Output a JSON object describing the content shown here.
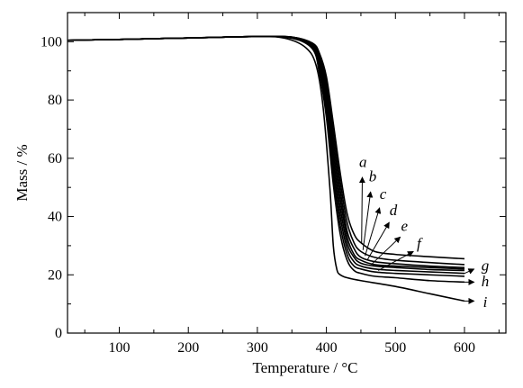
{
  "chart_data": {
    "type": "line",
    "xlabel": "Temperature / °C",
    "ylabel": "Mass / %",
    "xlim": [
      25,
      660
    ],
    "ylim": [
      0,
      110
    ],
    "x_ticks": [
      100,
      200,
      300,
      400,
      500,
      600
    ],
    "x_tick_labels": [
      "100",
      "200",
      "300",
      "400",
      "500",
      "600"
    ],
    "y_ticks": [
      0,
      20,
      40,
      60,
      80,
      100
    ],
    "y_tick_labels": [
      "0",
      "20",
      "40",
      "60",
      "80",
      "100"
    ],
    "grid": false,
    "legend": "none",
    "series": [
      {
        "name": "a",
        "x": [
          25,
          100,
          200,
          300,
          350,
          380,
          390,
          400,
          410,
          420,
          430,
          440,
          450,
          470,
          500,
          550,
          600
        ],
        "y": [
          100.5,
          100.8,
          101.3,
          101.8,
          101.6,
          99.5,
          96,
          88,
          72,
          55,
          41,
          34,
          31,
          28,
          27,
          26.2,
          25.5
        ]
      },
      {
        "name": "b",
        "x": [
          25,
          100,
          200,
          300,
          350,
          380,
          390,
          400,
          410,
          420,
          430,
          440,
          450,
          470,
          500,
          550,
          600
        ],
        "y": [
          100.5,
          100.8,
          101.3,
          101.8,
          101.6,
          99.2,
          95,
          86,
          69,
          52,
          38,
          31,
          28,
          26,
          25,
          24.2,
          23.5
        ]
      },
      {
        "name": "c",
        "x": [
          25,
          100,
          200,
          300,
          350,
          380,
          390,
          400,
          410,
          420,
          430,
          440,
          450,
          470,
          500,
          550,
          600
        ],
        "y": [
          100.5,
          100.8,
          101.3,
          101.8,
          101.6,
          99,
          94,
          84,
          66,
          49,
          35,
          29,
          26,
          24.5,
          23.8,
          23,
          22.5
        ]
      },
      {
        "name": "d",
        "x": [
          25,
          100,
          200,
          300,
          350,
          380,
          390,
          400,
          410,
          420,
          430,
          440,
          450,
          470,
          500,
          550,
          600
        ],
        "y": [
          100.5,
          100.8,
          101.3,
          101.8,
          101.5,
          98.8,
          93,
          82,
          63,
          46,
          33,
          27,
          25,
          23.5,
          23,
          22.5,
          22
        ]
      },
      {
        "name": "e",
        "x": [
          25,
          100,
          200,
          300,
          350,
          380,
          390,
          400,
          410,
          420,
          430,
          440,
          450,
          470,
          500,
          550,
          600
        ],
        "y": [
          100.5,
          100.8,
          101.3,
          101.8,
          101.5,
          98.5,
          92,
          80,
          60,
          43,
          31,
          26,
          24,
          23,
          22.5,
          21.8,
          21.5
        ]
      },
      {
        "name": "f",
        "x": [
          25,
          100,
          200,
          300,
          350,
          380,
          390,
          400,
          410,
          420,
          430,
          440,
          450,
          470,
          500,
          550,
          600
        ],
        "y": [
          100.5,
          100.8,
          101.3,
          101.8,
          101.4,
          98.2,
          91,
          78,
          57,
          40,
          29,
          24.5,
          23,
          22,
          21.5,
          21,
          20.5
        ]
      },
      {
        "name": "g",
        "x": [
          25,
          100,
          200,
          300,
          350,
          380,
          390,
          400,
          410,
          420,
          430,
          440,
          450,
          470,
          500,
          550,
          600
        ],
        "y": [
          100.5,
          100.8,
          101.3,
          101.8,
          101.3,
          98,
          90,
          76,
          54,
          37,
          27,
          23,
          22,
          21,
          20.5,
          20,
          19.5
        ]
      },
      {
        "name": "h",
        "x": [
          25,
          100,
          200,
          300,
          350,
          380,
          390,
          400,
          410,
          420,
          430,
          440,
          450,
          470,
          500,
          550,
          600
        ],
        "y": [
          100.5,
          100.8,
          101.3,
          101.8,
          101.2,
          97.5,
          89,
          74,
          51,
          34,
          25,
          21.5,
          20.5,
          19.5,
          19,
          18,
          17.5
        ]
      },
      {
        "name": "i",
        "x": [
          25,
          100,
          200,
          300,
          340,
          370,
          385,
          395,
          405,
          410,
          415,
          420,
          430,
          450,
          500,
          550,
          600
        ],
        "y": [
          100.5,
          100.8,
          101.3,
          101.8,
          101.2,
          98,
          92,
          78,
          50,
          30,
          22,
          20,
          19,
          18,
          16,
          13.5,
          11
        ]
      }
    ],
    "curve_labels": [
      {
        "text": "a",
        "x": 453,
        "y": 57,
        "tip_x": 452,
        "tip_y": 53.5,
        "base_x": 451,
        "base_y": 31
      },
      {
        "text": "b",
        "x": 467,
        "y": 52,
        "tip_x": 464,
        "tip_y": 48.5,
        "base_x": 453,
        "base_y": 28.5
      },
      {
        "text": "c",
        "x": 482,
        "y": 46,
        "tip_x": 477,
        "tip_y": 43,
        "base_x": 456,
        "base_y": 26.5
      },
      {
        "text": "d",
        "x": 497,
        "y": 40.5,
        "tip_x": 491,
        "tip_y": 38,
        "base_x": 459,
        "base_y": 25
      },
      {
        "text": "e",
        "x": 513,
        "y": 35,
        "tip_x": 507,
        "tip_y": 33,
        "base_x": 465,
        "base_y": 23.5
      },
      {
        "text": "f",
        "x": 534,
        "y": 29,
        "tip_x": 526,
        "tip_y": 28,
        "base_x": 475,
        "base_y": 21.5
      },
      {
        "text": "g",
        "x": 630,
        "y": 21.5,
        "tip_x": 614,
        "tip_y": 22,
        "base_x": 600,
        "base_y": 20.5
      },
      {
        "text": "h",
        "x": 630,
        "y": 16,
        "tip_x": 614,
        "tip_y": 17.5,
        "base_x": 600,
        "base_y": 17.5
      },
      {
        "text": "i",
        "x": 630,
        "y": 9,
        "tip_x": 614,
        "tip_y": 11,
        "base_x": 600,
        "base_y": 11
      }
    ]
  }
}
